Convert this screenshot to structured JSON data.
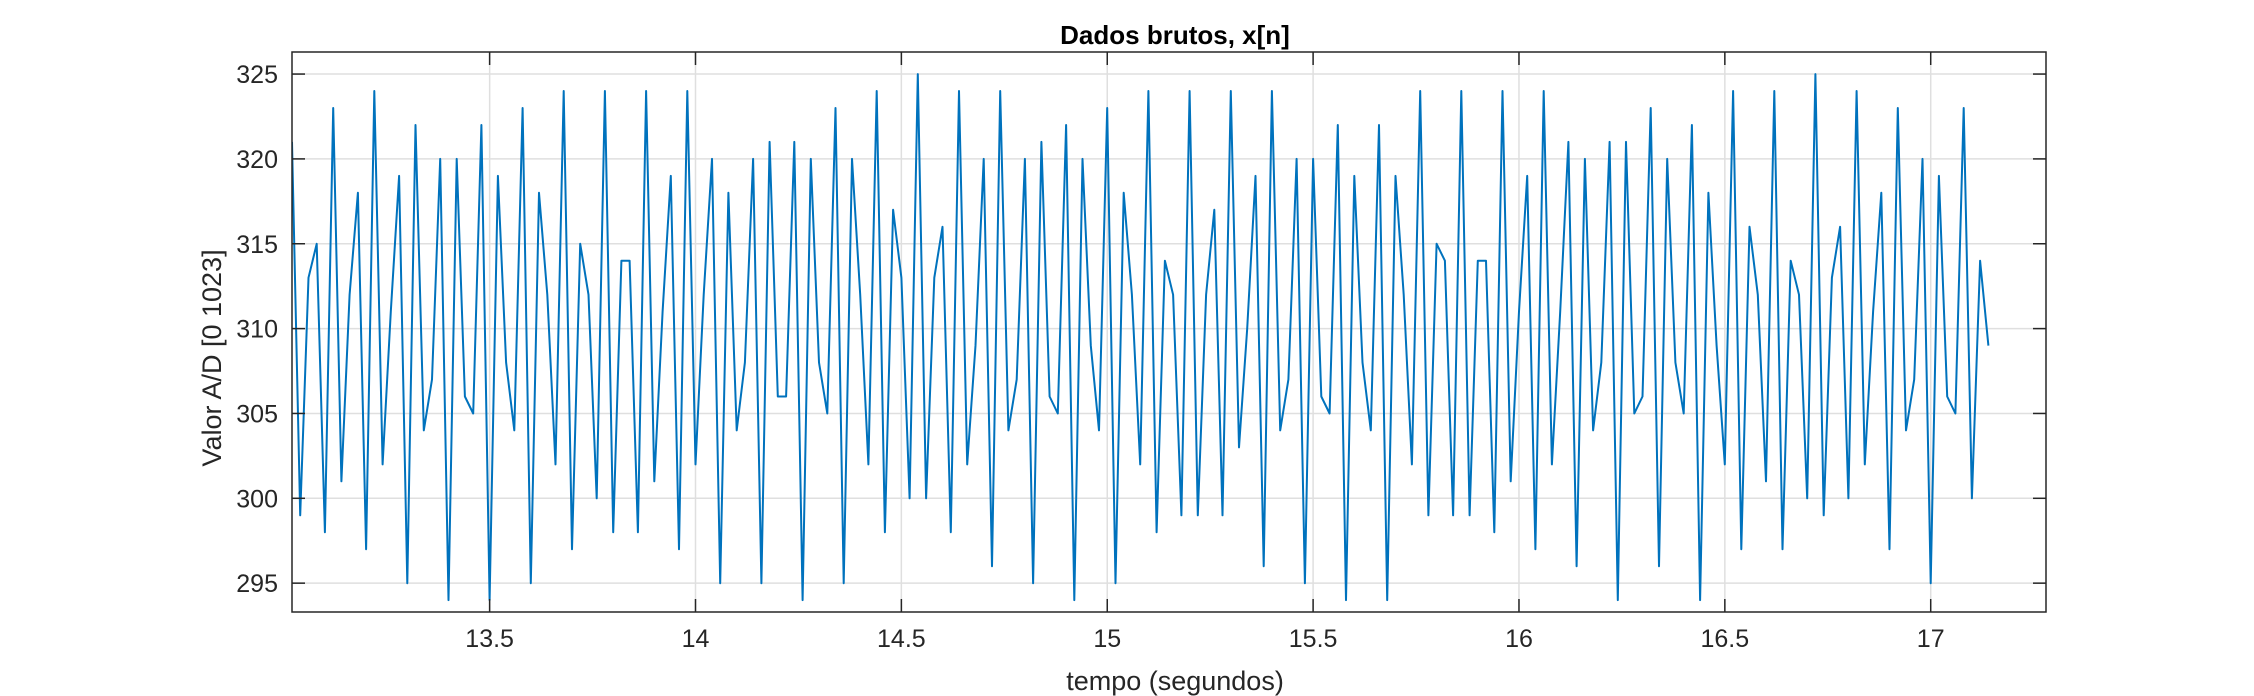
{
  "chart_data": {
    "type": "line",
    "title": "Dados brutos, x[n]",
    "xlabel": "tempo (segundos)",
    "ylabel": "Valor A/D [0  1023]",
    "xlim": [
      13.02,
      17.28
    ],
    "ylim": [
      293.3,
      326.3
    ],
    "xticks": [
      13.5,
      14,
      14.5,
      15,
      15.5,
      16,
      16.5,
      17
    ],
    "xtick_labels": [
      "13.5",
      "14",
      "14.5",
      "15",
      "15.5",
      "16",
      "16.5",
      "17"
    ],
    "yticks": [
      295,
      300,
      305,
      310,
      315,
      320,
      325
    ],
    "ytick_labels": [
      "295",
      "300",
      "305",
      "310",
      "315",
      "320",
      "325"
    ],
    "grid": true,
    "series_color": "#0072BD",
    "series": [
      {
        "x_start": 13.02,
        "x_step": 0.02,
        "values": [
          321,
          299,
          313,
          315,
          298,
          323,
          301,
          312,
          318,
          297,
          324,
          302,
          311,
          319,
          295,
          322,
          304,
          307,
          320,
          294,
          320,
          306,
          305,
          322,
          294,
          319,
          308,
          304,
          323,
          295,
          318,
          312,
          302,
          324,
          297,
          315,
          312,
          300,
          324,
          298,
          314,
          314,
          298,
          324,
          301,
          311,
          319,
          297,
          324,
          302,
          312,
          320,
          295,
          318,
          304,
          308,
          320,
          295,
          321,
          306,
          306,
          321,
          294,
          320,
          308,
          305,
          323,
          295,
          320,
          312,
          302,
          324,
          298,
          317,
          313,
          300,
          325,
          300,
          313,
          316,
          298,
          324,
          302,
          309,
          320,
          296,
          324,
          304,
          307,
          320,
          295,
          321,
          306,
          305,
          322,
          294,
          320,
          309,
          304,
          323,
          295,
          318,
          312,
          302,
          324,
          298,
          314,
          312,
          299,
          324,
          299,
          312,
          317,
          299,
          324,
          303,
          310,
          319,
          296,
          324,
          304,
          307,
          320,
          295,
          320,
          306,
          305,
          322,
          294,
          319,
          308,
          304,
          322,
          294,
          319,
          312,
          302,
          324,
          299,
          315,
          314,
          299,
          324,
          299,
          314,
          314,
          298,
          324,
          301,
          311,
          319,
          297,
          324,
          302,
          311,
          321,
          296,
          320,
          304,
          308,
          321,
          294,
          321,
          305,
          306,
          323,
          296,
          320,
          308,
          305,
          322,
          294,
          318,
          309,
          302,
          324,
          297,
          316,
          312,
          301,
          324,
          297,
          314,
          312,
          300,
          325,
          299,
          313,
          316,
          300,
          324,
          302,
          311,
          318,
          297,
          323,
          304,
          307,
          320,
          295,
          319,
          306,
          305,
          323,
          300,
          314,
          309
        ]
      }
    ]
  }
}
